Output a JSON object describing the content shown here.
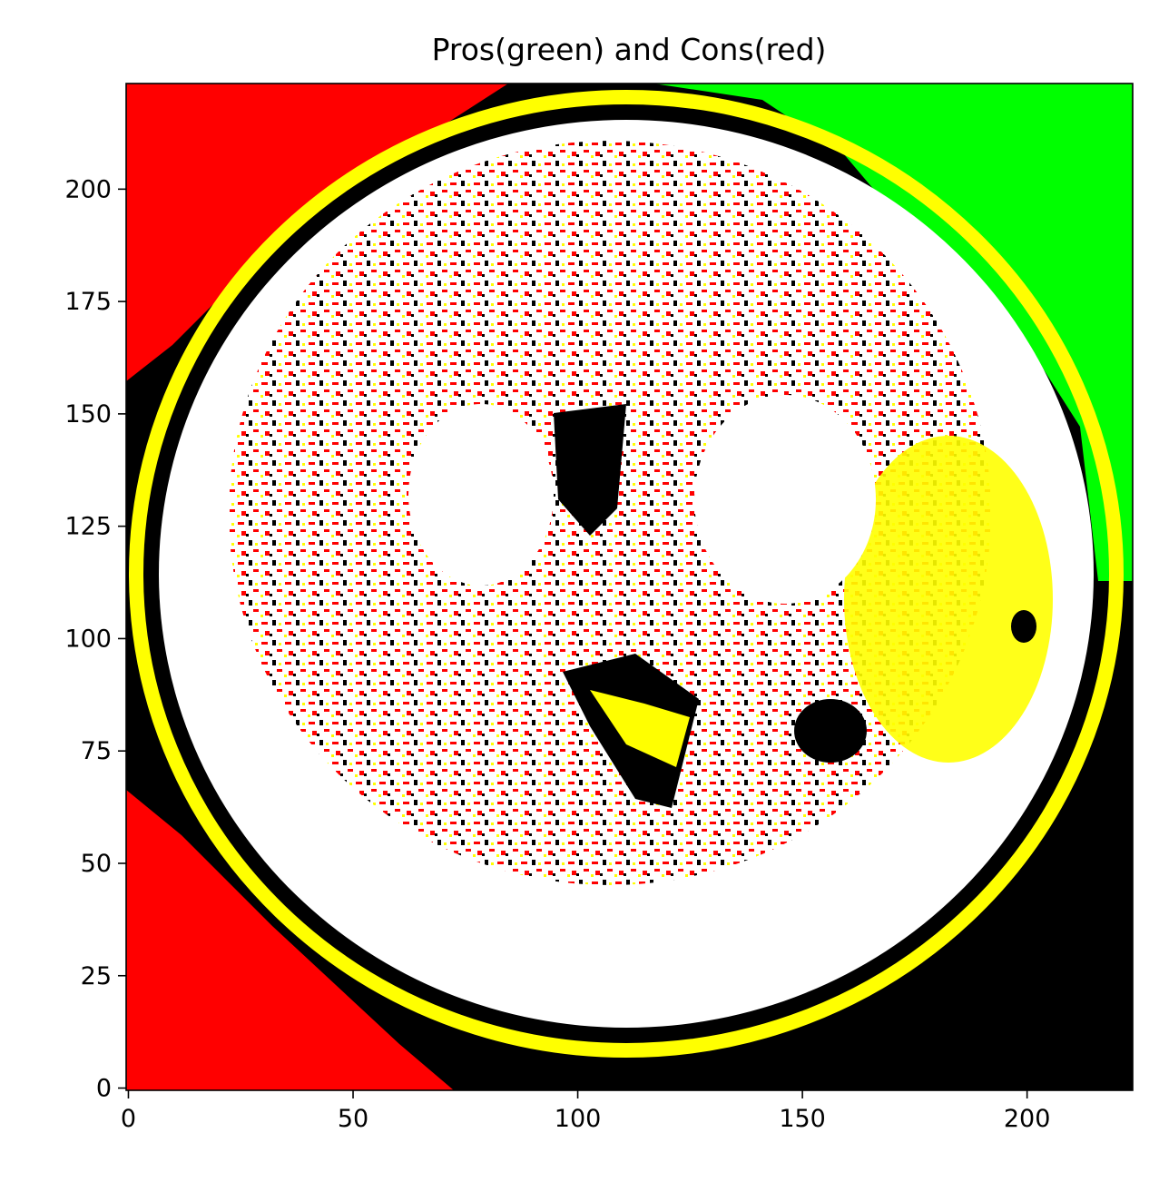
{
  "chart_data": {
    "type": "heatmap",
    "title": "Pros(green) and Cons(red)",
    "xlabel": "",
    "ylabel": "",
    "xlim": [
      -0.5,
      223.5
    ],
    "ylim": [
      223.5,
      -0.5
    ],
    "x_ticks": [
      0,
      50,
      100,
      150,
      200
    ],
    "y_ticks": [
      0,
      25,
      50,
      75,
      100,
      125,
      150,
      175,
      200
    ],
    "x_tick_labels": [
      "0",
      "50",
      "100",
      "150",
      "200"
    ],
    "y_tick_labels": [
      "0",
      "25",
      "50",
      "75",
      "100",
      "125",
      "150",
      "175",
      "200"
    ],
    "grid": false,
    "legend": "none",
    "image_size": [
      224,
      224
    ],
    "colors": {
      "pros": "#00ff00",
      "cons": "#ff0000",
      "skull": "#ffffff",
      "highlight": "#ffff00",
      "background": "#000000"
    }
  }
}
